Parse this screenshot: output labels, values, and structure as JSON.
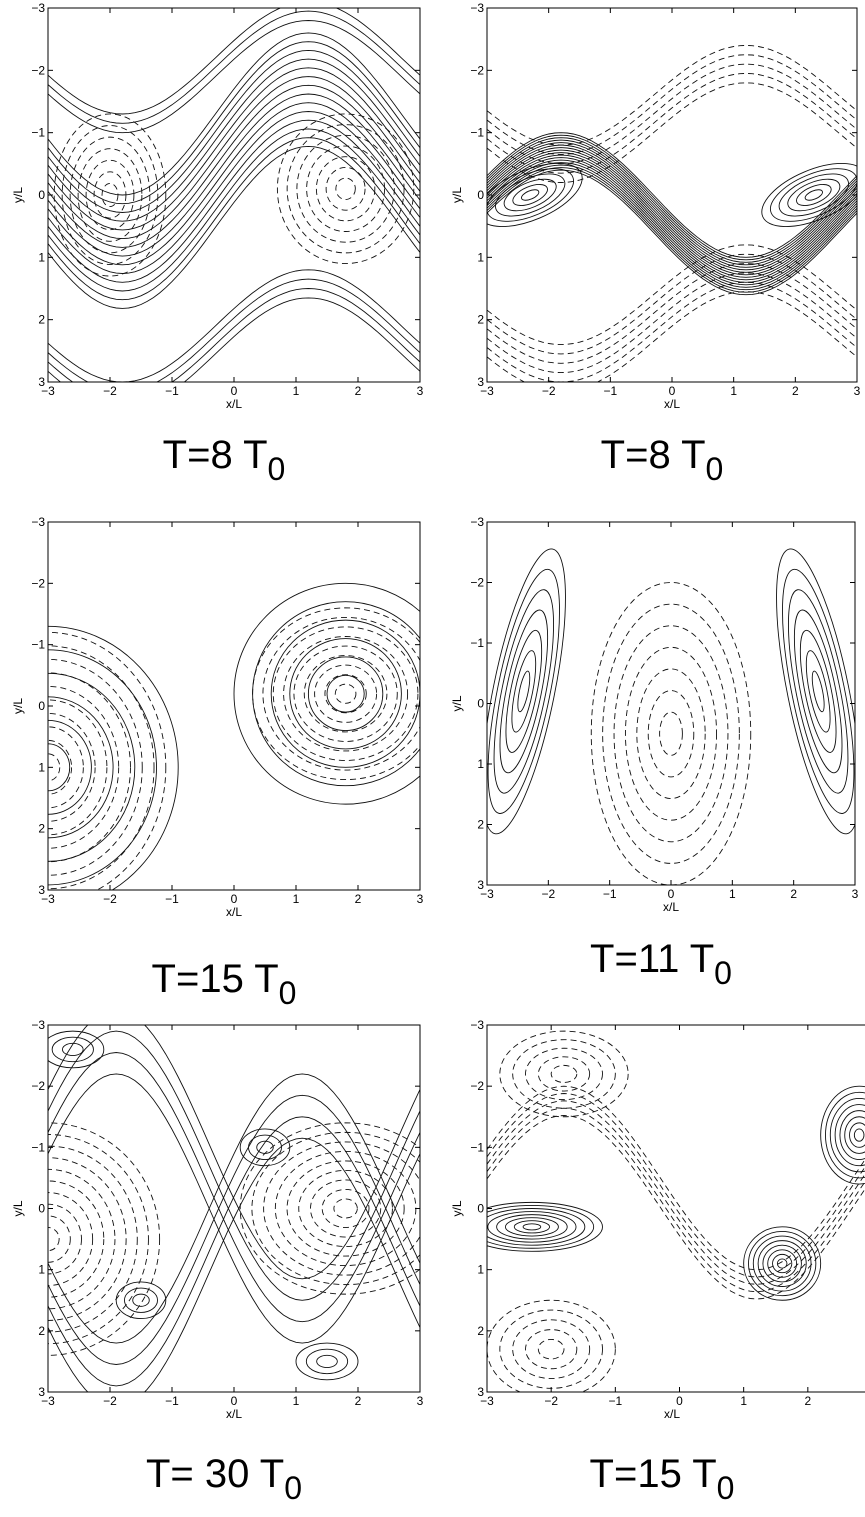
{
  "chart_data": [
    {
      "type": "contour",
      "xlabel": "x/L",
      "ylabel": "y/L",
      "caption": "T=8  T",
      "caption_subscript": "0",
      "xlim": [
        -3,
        3
      ],
      "ylim": [
        -3,
        3
      ],
      "xticks": [
        {
          "value": -3,
          "label": "−3"
        },
        {
          "value": -2,
          "label": "−2"
        },
        {
          "value": -1,
          "label": "−1"
        },
        0,
        1,
        2,
        3
      ],
      "yticks": [
        {
          "value": -3,
          "label": "−3"
        },
        {
          "value": -2,
          "label": "−2"
        },
        {
          "value": -1,
          "label": "−1"
        },
        0,
        1,
        2,
        3
      ]
    },
    {
      "type": "contour",
      "xlabel": "x/L",
      "ylabel": "y/L",
      "caption": "T=8 T",
      "caption_subscript": "0",
      "xlim": [
        -3,
        3
      ],
      "ylim": [
        -3,
        3
      ],
      "xticks": [
        {
          "value": -3,
          "label": "−3"
        },
        {
          "value": -2,
          "label": "−2"
        },
        {
          "value": -1,
          "label": "−1"
        },
        0,
        1,
        2,
        3
      ],
      "yticks": [
        {
          "value": -3,
          "label": "−3"
        },
        {
          "value": -2,
          "label": "−2"
        },
        {
          "value": -1,
          "label": "−1"
        },
        0,
        1,
        2,
        3
      ]
    },
    {
      "type": "contour",
      "xlabel": "x/L",
      "ylabel": "y/L",
      "caption": "T=15  T",
      "caption_subscript": "0",
      "xlim": [
        -3,
        3
      ],
      "ylim": [
        -3,
        3
      ],
      "xticks": [
        {
          "value": -3,
          "label": "−3"
        },
        {
          "value": -2,
          "label": "−2"
        },
        {
          "value": -1,
          "label": "−1"
        },
        0,
        1,
        2,
        3
      ],
      "yticks": [
        {
          "value": -3,
          "label": "−3"
        },
        {
          "value": -2,
          "label": "−2"
        },
        {
          "value": -1,
          "label": "−1"
        },
        0,
        1,
        2,
        3
      ]
    },
    {
      "type": "contour",
      "xlabel": "x/L",
      "ylabel": "y/L",
      "caption": "T=11 T",
      "caption_subscript": "0",
      "xlim": [
        -3,
        3
      ],
      "ylim": [
        -3,
        3
      ],
      "xticks": [
        {
          "value": -3,
          "label": "−3"
        },
        {
          "value": -2,
          "label": "−2"
        },
        {
          "value": -1,
          "label": "−1"
        },
        0,
        1,
        2,
        3
      ],
      "yticks": [
        {
          "value": -3,
          "label": "−3"
        },
        {
          "value": -2,
          "label": "−2"
        },
        {
          "value": -1,
          "label": "−1"
        },
        0,
        1,
        2,
        3
      ]
    },
    {
      "type": "contour",
      "xlabel": "x/L",
      "ylabel": "y/L",
      "caption": "T= 30  T",
      "caption_subscript": "0",
      "xlim": [
        -3,
        3
      ],
      "ylim": [
        -3,
        3
      ],
      "xticks": [
        {
          "value": -3,
          "label": "−3"
        },
        {
          "value": -2,
          "label": "−2"
        },
        {
          "value": -1,
          "label": "−1"
        },
        0,
        1,
        2,
        3
      ],
      "yticks": [
        {
          "value": -3,
          "label": "−3"
        },
        {
          "value": -2,
          "label": "−2"
        },
        {
          "value": -1,
          "label": "−1"
        },
        0,
        1,
        2,
        3
      ]
    },
    {
      "type": "contour",
      "xlabel": "x/L",
      "ylabel": "y/L",
      "caption": "T=15  T",
      "caption_subscript": "0",
      "xlim": [
        -3,
        3
      ],
      "ylim": [
        -3,
        3
      ],
      "xticks": [
        {
          "value": -3,
          "label": "−3"
        },
        {
          "value": -2,
          "label": "−2"
        },
        {
          "value": -1,
          "label": "−1"
        },
        0,
        1,
        2
      ],
      "yticks": [
        {
          "value": -3,
          "label": "−3"
        },
        {
          "value": -2,
          "label": "−2"
        },
        {
          "value": -1,
          "label": "−1"
        },
        0,
        1,
        2,
        3
      ]
    }
  ]
}
